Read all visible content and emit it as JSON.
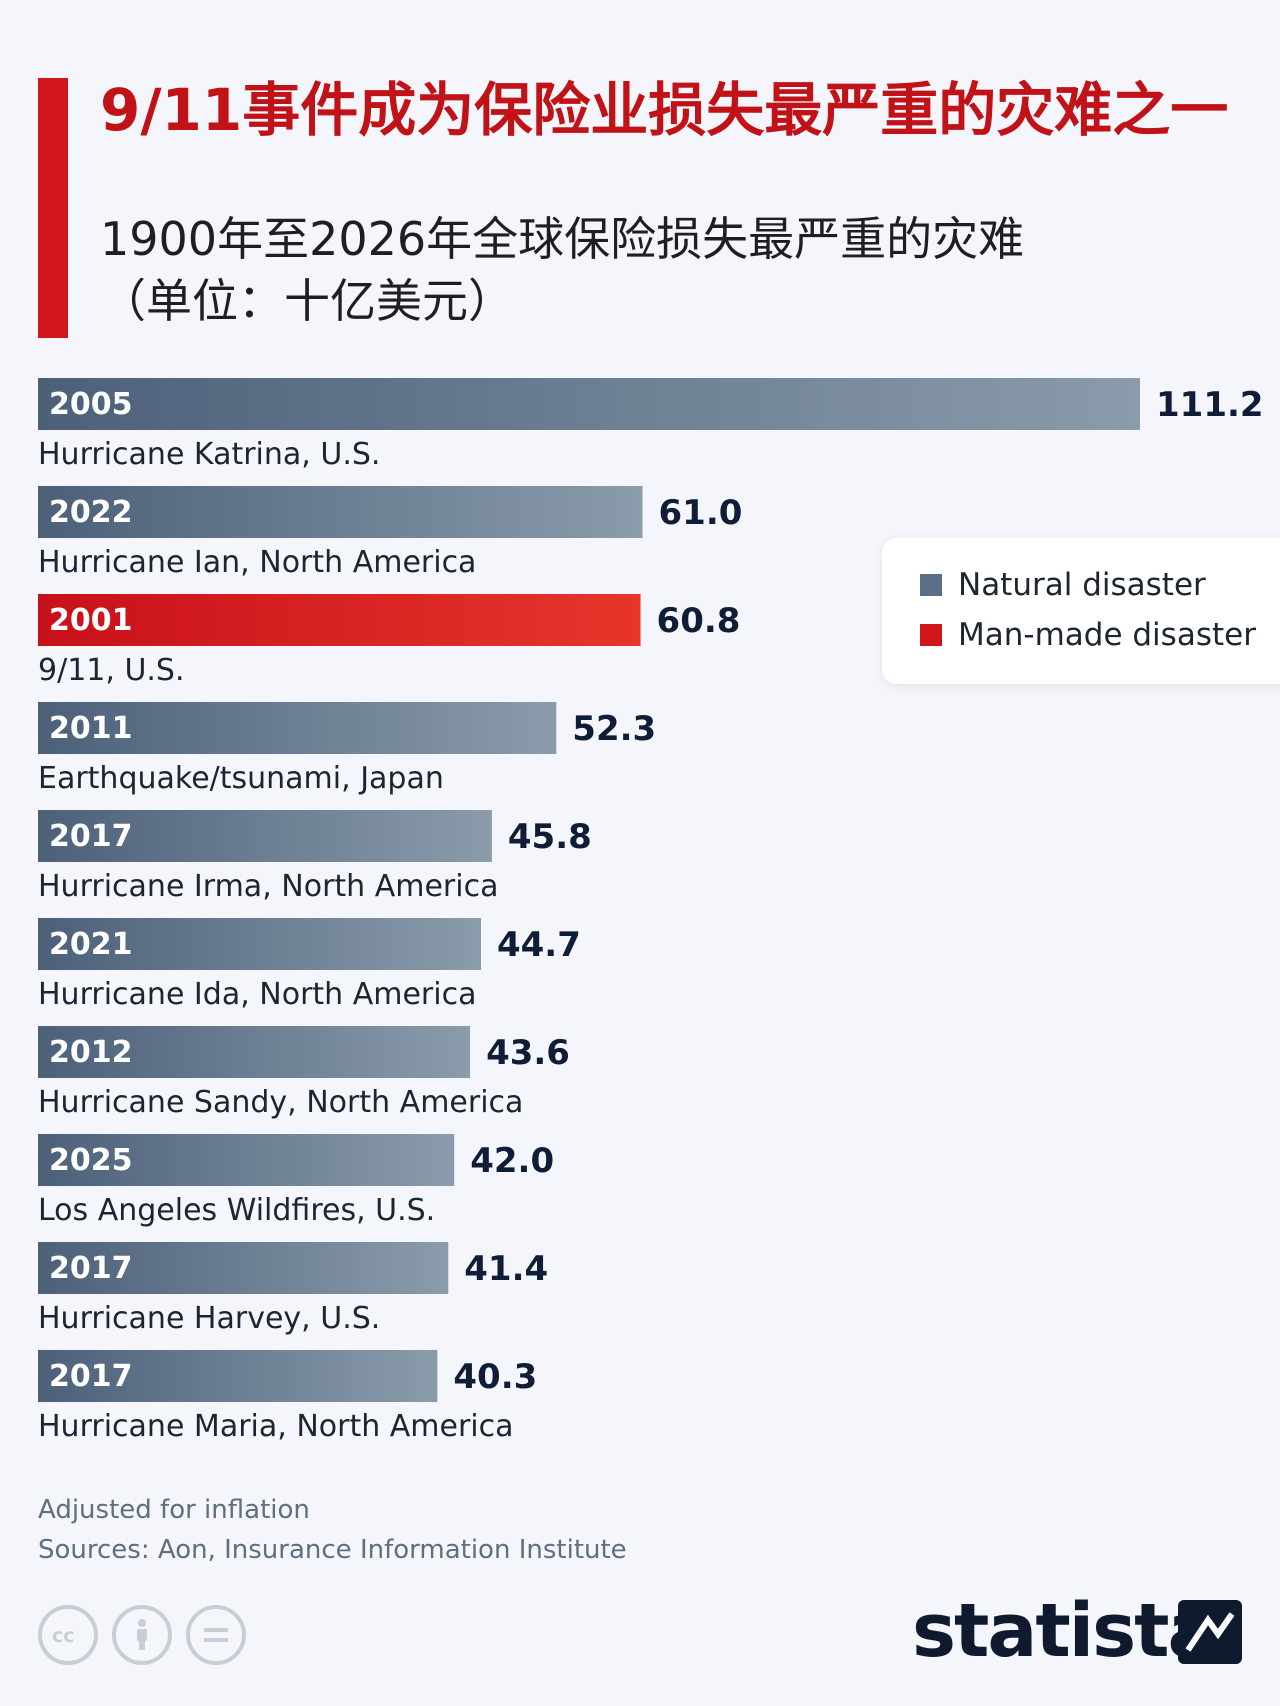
{
  "header": {
    "title": "9/11事件成为保险业损失最严重的灾难之一",
    "subtitle_line1": "1900年至2026年全球保险损失最严重的灾难",
    "subtitle_line2": "（单位：十亿美元）"
  },
  "colors": {
    "accent": "#d0161b",
    "natural_left": "#4c607a",
    "natural_right": "#8a9cab",
    "manmade_left": "#c8101a",
    "manmade_right": "#e8352b",
    "value_text": "#0f1d36"
  },
  "legend": {
    "items": [
      {
        "label": "Natural disaster",
        "color": "#5a6f86"
      },
      {
        "label": "Man-made disaster",
        "color": "#d0161b"
      }
    ]
  },
  "chart_data": {
    "type": "bar",
    "orientation": "horizontal",
    "xlim": [
      0,
      111.2
    ],
    "bars": [
      {
        "year": "2005",
        "event": "Hurricane Katrina, U.S.",
        "value": 111.2,
        "kind": "natural",
        "label": "111.2"
      },
      {
        "year": "2022",
        "event": "Hurricane Ian, North America",
        "value": 61.0,
        "kind": "natural",
        "label": "61.0"
      },
      {
        "year": "2001",
        "event": "9/11, U.S.",
        "value": 60.8,
        "kind": "manmade",
        "label": "60.8"
      },
      {
        "year": "2011",
        "event": "Earthquake/tsunami, Japan",
        "value": 52.3,
        "kind": "natural",
        "label": "52.3"
      },
      {
        "year": "2017",
        "event": "Hurricane Irma, North America",
        "value": 45.8,
        "kind": "natural",
        "label": "45.8"
      },
      {
        "year": "2021",
        "event": "Hurricane Ida, North America",
        "value": 44.7,
        "kind": "natural",
        "label": "44.7"
      },
      {
        "year": "2012",
        "event": "Hurricane Sandy, North America",
        "value": 43.6,
        "kind": "natural",
        "label": "43.6"
      },
      {
        "year": "2025",
        "event": "Los Angeles Wildfires, U.S.",
        "value": 42.0,
        "kind": "natural",
        "label": "42.0"
      },
      {
        "year": "2017",
        "event": "Hurricane Harvey, U.S.",
        "value": 41.4,
        "kind": "natural",
        "label": "41.4"
      },
      {
        "year": "2017",
        "event": "Hurricane Maria, North America",
        "value": 40.3,
        "kind": "natural",
        "label": "40.3"
      }
    ]
  },
  "footer": {
    "note": "Adjusted for inflation",
    "sources": "Sources: Aon, Insurance Information Institute",
    "license_icons": [
      "cc-icon",
      "attribution-icon",
      "no-derivatives-icon"
    ],
    "brand": "statista"
  }
}
